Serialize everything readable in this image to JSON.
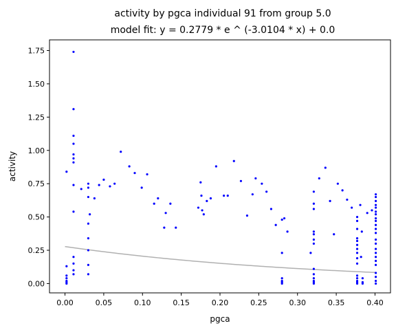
{
  "chart_data": {
    "type": "scatter",
    "title": "activity by pgca individual 91 from group 5.0",
    "subtitle": "model fit: y = 0.2779 * e ^ (-3.0104 * x) + 0.0",
    "xlabel": "pgca",
    "ylabel": "activity",
    "xlim": [
      -0.02,
      0.42
    ],
    "ylim": [
      -0.07,
      1.83
    ],
    "xticks": [
      0.0,
      0.05,
      0.1,
      0.15,
      0.2,
      0.25,
      0.3,
      0.35,
      0.4
    ],
    "xtick_labels": [
      "0.00",
      "0.05",
      "0.10",
      "0.15",
      "0.20",
      "0.25",
      "0.30",
      "0.35",
      "0.40"
    ],
    "yticks": [
      0.0,
      0.25,
      0.5,
      0.75,
      1.0,
      1.25,
      1.5,
      1.75
    ],
    "ytick_labels": [
      "0.00",
      "0.25",
      "0.50",
      "0.75",
      "1.00",
      "1.25",
      "1.50",
      "1.75"
    ],
    "grid": false,
    "colors": {
      "points": "#0000ff",
      "fit_line": "#b0b0b0"
    },
    "fit": {
      "a": 0.2779,
      "b": -3.0104,
      "c": 0.0,
      "x_range": [
        0.0,
        0.4
      ]
    },
    "points": [
      [
        0.002,
        0.0
      ],
      [
        0.002,
        0.01
      ],
      [
        0.002,
        0.02
      ],
      [
        0.002,
        0.04
      ],
      [
        0.002,
        0.06
      ],
      [
        0.002,
        0.13
      ],
      [
        0.002,
        0.84
      ],
      [
        0.011,
        1.74
      ],
      [
        0.011,
        1.31
      ],
      [
        0.011,
        1.11
      ],
      [
        0.011,
        1.05
      ],
      [
        0.011,
        0.97
      ],
      [
        0.011,
        0.94
      ],
      [
        0.011,
        0.91
      ],
      [
        0.011,
        0.74
      ],
      [
        0.011,
        0.54
      ],
      [
        0.011,
        0.2
      ],
      [
        0.011,
        0.15
      ],
      [
        0.011,
        0.1
      ],
      [
        0.011,
        0.07
      ],
      [
        0.021,
        0.71
      ],
      [
        0.03,
        0.75
      ],
      [
        0.03,
        0.72
      ],
      [
        0.03,
        0.65
      ],
      [
        0.03,
        0.45
      ],
      [
        0.03,
        0.34
      ],
      [
        0.03,
        0.25
      ],
      [
        0.03,
        0.14
      ],
      [
        0.03,
        0.07
      ],
      [
        0.032,
        0.52
      ],
      [
        0.038,
        0.64
      ],
      [
        0.044,
        0.74
      ],
      [
        0.05,
        0.78
      ],
      [
        0.058,
        0.73
      ],
      [
        0.064,
        0.75
      ],
      [
        0.072,
        0.99
      ],
      [
        0.083,
        0.88
      ],
      [
        0.09,
        0.83
      ],
      [
        0.099,
        0.72
      ],
      [
        0.106,
        0.82
      ],
      [
        0.115,
        0.6
      ],
      [
        0.12,
        0.64
      ],
      [
        0.128,
        0.42
      ],
      [
        0.13,
        0.53
      ],
      [
        0.136,
        0.6
      ],
      [
        0.143,
        0.42
      ],
      [
        0.172,
        0.57
      ],
      [
        0.175,
        0.76
      ],
      [
        0.176,
        0.66
      ],
      [
        0.177,
        0.55
      ],
      [
        0.179,
        0.52
      ],
      [
        0.183,
        0.62
      ],
      [
        0.188,
        0.64
      ],
      [
        0.195,
        0.88
      ],
      [
        0.205,
        0.66
      ],
      [
        0.21,
        0.66
      ],
      [
        0.218,
        0.92
      ],
      [
        0.227,
        0.77
      ],
      [
        0.235,
        0.51
      ],
      [
        0.242,
        0.67
      ],
      [
        0.246,
        0.79
      ],
      [
        0.254,
        0.75
      ],
      [
        0.26,
        0.69
      ],
      [
        0.266,
        0.56
      ],
      [
        0.272,
        0.44
      ],
      [
        0.28,
        0.48
      ],
      [
        0.28,
        0.23
      ],
      [
        0.28,
        0.04
      ],
      [
        0.28,
        0.02
      ],
      [
        0.28,
        0.01
      ],
      [
        0.28,
        0.0
      ],
      [
        0.283,
        0.49
      ],
      [
        0.287,
        0.39
      ],
      [
        0.317,
        0.23
      ],
      [
        0.321,
        0.69
      ],
      [
        0.321,
        0.6
      ],
      [
        0.321,
        0.56
      ],
      [
        0.321,
        0.39
      ],
      [
        0.321,
        0.37
      ],
      [
        0.321,
        0.33
      ],
      [
        0.321,
        0.3
      ],
      [
        0.321,
        0.11
      ],
      [
        0.321,
        0.07
      ],
      [
        0.321,
        0.04
      ],
      [
        0.321,
        0.02
      ],
      [
        0.321,
        0.01
      ],
      [
        0.321,
        0.0
      ],
      [
        0.328,
        0.79
      ],
      [
        0.336,
        0.87
      ],
      [
        0.342,
        0.62
      ],
      [
        0.347,
        0.37
      ],
      [
        0.352,
        0.75
      ],
      [
        0.358,
        0.7
      ],
      [
        0.364,
        0.63
      ],
      [
        0.37,
        0.57
      ],
      [
        0.377,
        0.5
      ],
      [
        0.377,
        0.47
      ],
      [
        0.377,
        0.41
      ],
      [
        0.377,
        0.34
      ],
      [
        0.377,
        0.32
      ],
      [
        0.377,
        0.29
      ],
      [
        0.377,
        0.26
      ],
      [
        0.377,
        0.23
      ],
      [
        0.377,
        0.19
      ],
      [
        0.377,
        0.15
      ],
      [
        0.377,
        0.06
      ],
      [
        0.377,
        0.04
      ],
      [
        0.377,
        0.02
      ],
      [
        0.377,
        0.01
      ],
      [
        0.377,
        0.0
      ],
      [
        0.381,
        0.59
      ],
      [
        0.382,
        0.2
      ],
      [
        0.383,
        0.39
      ],
      [
        0.384,
        0.04
      ],
      [
        0.384,
        0.01
      ],
      [
        0.384,
        0.0
      ],
      [
        0.39,
        0.53
      ],
      [
        0.396,
        0.55
      ],
      [
        0.401,
        0.67
      ],
      [
        0.401,
        0.65
      ],
      [
        0.401,
        0.62
      ],
      [
        0.401,
        0.59
      ],
      [
        0.401,
        0.57
      ],
      [
        0.401,
        0.54
      ],
      [
        0.401,
        0.52
      ],
      [
        0.401,
        0.49
      ],
      [
        0.401,
        0.47
      ],
      [
        0.401,
        0.44
      ],
      [
        0.401,
        0.41
      ],
      [
        0.401,
        0.38
      ],
      [
        0.401,
        0.33
      ],
      [
        0.401,
        0.3
      ],
      [
        0.401,
        0.26
      ],
      [
        0.401,
        0.23
      ],
      [
        0.401,
        0.2
      ],
      [
        0.401,
        0.17
      ],
      [
        0.401,
        0.14
      ],
      [
        0.401,
        0.08
      ],
      [
        0.401,
        0.05
      ],
      [
        0.401,
        0.02
      ],
      [
        0.401,
        0.0
      ]
    ]
  }
}
